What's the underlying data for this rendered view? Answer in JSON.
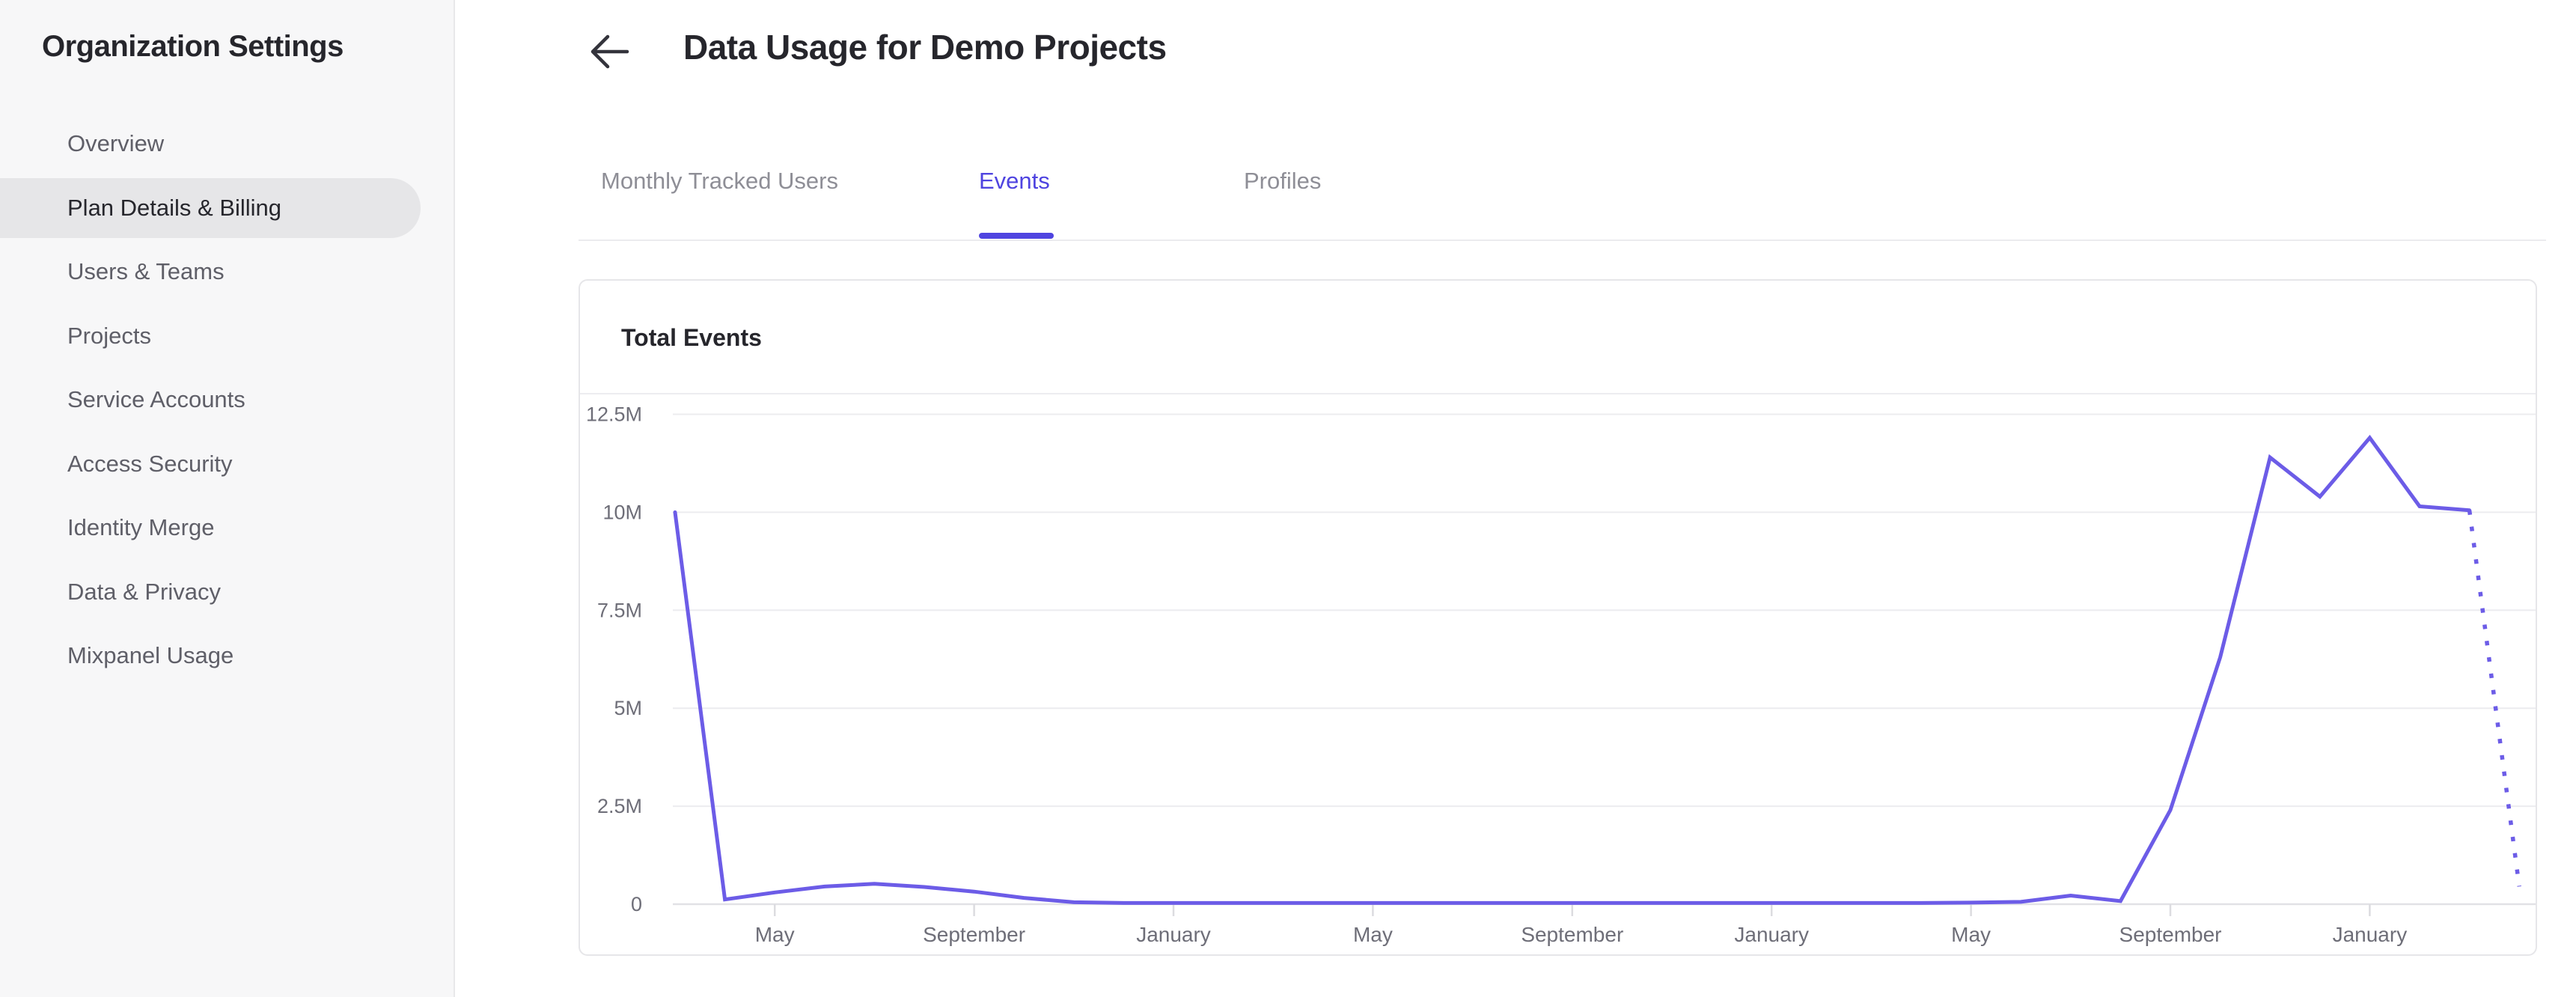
{
  "sidebar": {
    "title": "Organization Settings",
    "items": [
      {
        "label": "Overview",
        "selected": false
      },
      {
        "label": "Plan Details & Billing",
        "selected": true
      },
      {
        "label": "Users & Teams",
        "selected": false
      },
      {
        "label": "Projects",
        "selected": false
      },
      {
        "label": "Service Accounts",
        "selected": false
      },
      {
        "label": "Access Security",
        "selected": false
      },
      {
        "label": "Identity Merge",
        "selected": false
      },
      {
        "label": "Data & Privacy",
        "selected": false
      },
      {
        "label": "Mixpanel Usage",
        "selected": false
      }
    ]
  },
  "header": {
    "back_icon": "arrow-left",
    "title": "Data Usage for Demo Projects"
  },
  "tabs": [
    {
      "label": "Monthly Tracked Users",
      "active": false
    },
    {
      "label": "Events",
      "active": true
    },
    {
      "label": "Profiles",
      "active": false
    }
  ],
  "card": {
    "title": "Total Events"
  },
  "colors": {
    "accent": "#4f44e0",
    "line": "#6c5ce7",
    "grid": "#ececef",
    "axis": "#e2e2e6",
    "tick": "#dcdce0",
    "axis_label": "#6e6e78",
    "selected_pill": "#e6e6e8"
  },
  "chart_data": {
    "type": "line",
    "title": "Total Events",
    "unit": "events",
    "grid": "horizontal-only",
    "legend": "none",
    "ylim_millions": [
      0,
      12.5
    ],
    "y_ticks": [
      {
        "label": "0",
        "value": 0
      },
      {
        "label": "2.5M",
        "value": 2.5
      },
      {
        "label": "5M",
        "value": 5
      },
      {
        "label": "7.5M",
        "value": 7.5
      },
      {
        "label": "10M",
        "value": 10
      },
      {
        "label": "12.5M",
        "value": 12.5
      }
    ],
    "x_ticks": [
      {
        "label": "May",
        "month_index": 2
      },
      {
        "label": "September",
        "month_index": 6
      },
      {
        "label": "January",
        "month_index": 10
      },
      {
        "label": "May",
        "month_index": 14
      },
      {
        "label": "September",
        "month_index": 18
      },
      {
        "label": "January",
        "month_index": 22
      },
      {
        "label": "May",
        "month_index": 26
      },
      {
        "label": "September",
        "month_index": 30
      },
      {
        "label": "January",
        "month_index": 34
      }
    ],
    "months": [
      "Mar",
      "Apr",
      "May",
      "Jun",
      "Jul",
      "Aug",
      "Sep",
      "Oct",
      "Nov",
      "Dec",
      "Jan",
      "Feb",
      "Mar",
      "Apr",
      "May",
      "Jun",
      "Jul",
      "Aug",
      "Sep",
      "Oct",
      "Nov",
      "Dec",
      "Jan",
      "Feb",
      "Mar",
      "Apr",
      "May",
      "Jun",
      "Jul",
      "Aug",
      "Sep",
      "Oct",
      "Nov",
      "Dec",
      "Jan",
      "Feb",
      "Mar",
      "Apr"
    ],
    "values_millions": [
      10.0,
      0.12,
      0.3,
      0.45,
      0.52,
      0.44,
      0.32,
      0.16,
      0.05,
      0.03,
      0.03,
      0.03,
      0.03,
      0.03,
      0.03,
      0.03,
      0.03,
      0.03,
      0.03,
      0.03,
      0.03,
      0.03,
      0.03,
      0.03,
      0.03,
      0.03,
      0.04,
      0.06,
      0.22,
      0.08,
      2.4,
      6.3,
      11.4,
      10.4,
      11.9,
      10.15,
      10.05,
      0.45
    ],
    "dotted_from_index": 36,
    "line_style_last_segment": "dotted"
  }
}
